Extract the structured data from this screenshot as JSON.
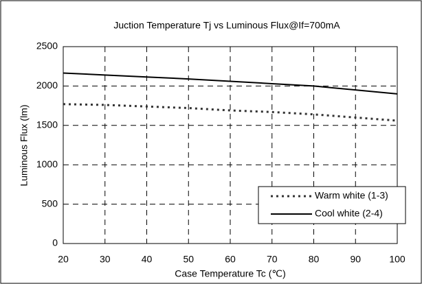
{
  "chart_data": {
    "type": "line",
    "title": "Juction Temperature Tj vs Luminous Flux@If=700mA",
    "x_label": "Case Temperature Tc (℃)",
    "y_label": "Luminous Flux (lm)",
    "x": [
      20,
      30,
      40,
      50,
      60,
      70,
      80,
      90,
      100
    ],
    "series": [
      {
        "name": "Warm white (1-3)",
        "color": "#333333",
        "style": "dotted",
        "values": [
          1770,
          1760,
          1740,
          1720,
          1690,
          1670,
          1640,
          1600,
          1560
        ]
      },
      {
        "name": "Cool white (2-4)",
        "color": "#000000",
        "style": "solid",
        "values": [
          2165,
          2140,
          2115,
          2090,
          2060,
          2030,
          2000,
          1950,
          1900
        ]
      }
    ],
    "xlim": [
      20,
      100
    ],
    "xticks": [
      20,
      30,
      40,
      50,
      60,
      70,
      80,
      90,
      100
    ],
    "ylim": [
      0,
      2500
    ],
    "yticks": [
      0,
      500,
      1000,
      1500,
      2000,
      2500
    ],
    "grid": true,
    "legend": "lower right"
  }
}
